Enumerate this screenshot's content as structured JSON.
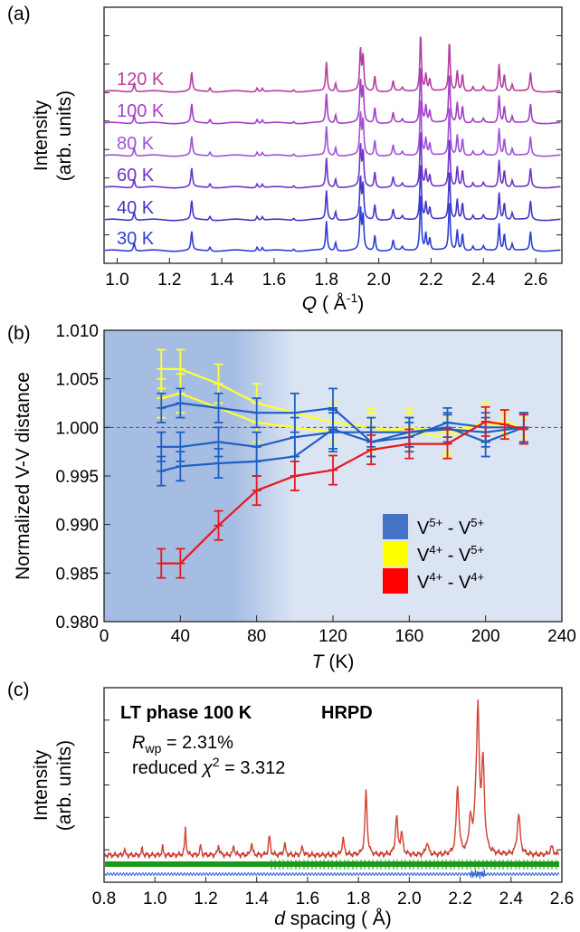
{
  "chart_data": [
    {
      "panel": "(a)",
      "type": "line",
      "xlabel_italic": "Q",
      "xlabel_rest": " ( Å",
      "xlabel_sup": "-1",
      "xlabel_close": ")",
      "ylabel_line1": "Intensity",
      "ylabel_line2": "(arb. units)",
      "xlim": [
        0.95,
        2.7
      ],
      "xticks": [
        1.0,
        1.2,
        1.4,
        1.6,
        1.8,
        2.0,
        2.2,
        2.4,
        2.6
      ],
      "xtick_labels": [
        "1.0",
        "1.2",
        "1.4",
        "1.6",
        "1.8",
        "2.0",
        "2.2",
        "2.4",
        "2.6"
      ],
      "peaks": [
        {
          "q": 1.065,
          "h": 0.25
        },
        {
          "q": 1.285,
          "h": 0.55
        },
        {
          "q": 1.355,
          "h": 0.12
        },
        {
          "q": 1.535,
          "h": 0.12
        },
        {
          "q": 1.555,
          "h": 0.1
        },
        {
          "q": 1.675,
          "h": 0.06
        },
        {
          "q": 1.8,
          "h": 0.85
        },
        {
          "q": 1.835,
          "h": 0.25
        },
        {
          "q": 1.93,
          "h": 1.2
        },
        {
          "q": 1.94,
          "h": 1.0
        },
        {
          "q": 1.985,
          "h": 0.45
        },
        {
          "q": 2.055,
          "h": 0.3
        },
        {
          "q": 2.09,
          "h": 0.1
        },
        {
          "q": 2.16,
          "h": 1.7
        },
        {
          "q": 2.18,
          "h": 0.5
        },
        {
          "q": 2.195,
          "h": 0.35
        },
        {
          "q": 2.27,
          "h": 1.45
        },
        {
          "q": 2.3,
          "h": 0.6
        },
        {
          "q": 2.32,
          "h": 0.5
        },
        {
          "q": 2.36,
          "h": 0.12
        },
        {
          "q": 2.4,
          "h": 0.12
        },
        {
          "q": 2.46,
          "h": 0.8
        },
        {
          "q": 2.48,
          "h": 0.5
        },
        {
          "q": 2.51,
          "h": 0.2
        },
        {
          "q": 2.58,
          "h": 0.55
        }
      ],
      "series": [
        {
          "name": "30 K",
          "color": "#2e3fd6"
        },
        {
          "name": "40 K",
          "color": "#4338c8"
        },
        {
          "name": "60 K",
          "color": "#6f35c8"
        },
        {
          "name": "80 K",
          "color": "#a052d8"
        },
        {
          "name": "100 K",
          "color": "#a43fc6"
        },
        {
          "name": "120 K",
          "color": "#b53fa0"
        }
      ]
    },
    {
      "panel": "(b)",
      "type": "line",
      "xlabel_italic": "T",
      "xlabel_rest": " (K)",
      "ylabel": "Normalized V-V distance",
      "xlim": [
        0,
        240
      ],
      "ylim": [
        0.98,
        1.01
      ],
      "xticks": [
        0,
        40,
        80,
        120,
        160,
        200,
        240
      ],
      "xtick_labels": [
        "0",
        "40",
        "80",
        "120",
        "160",
        "200",
        "240"
      ],
      "yticks": [
        0.98,
        0.985,
        0.99,
        0.995,
        1.0,
        1.005,
        1.01
      ],
      "ytick_labels": [
        "0.980",
        "0.985",
        "0.990",
        "0.995",
        "1.000",
        "1.005",
        "1.010"
      ],
      "reference_line": 1.0,
      "shaded_region_x": [
        0,
        100
      ],
      "legend_position": "bottom-right",
      "legend": [
        {
          "label": "V",
          "sup1": "5+",
          "mid": " - V",
          "sup2": "5+",
          "color": "#4472c4"
        },
        {
          "label": "V",
          "sup1": "4+",
          "mid": " - V",
          "sup2": "5+",
          "color": "#ffff00"
        },
        {
          "label": "V",
          "sup1": "4+",
          "mid": " - V",
          "sup2": "4+",
          "color": "#ff0000"
        }
      ],
      "series": [
        {
          "group": "V5+-V5+",
          "color": "#1f5fc4",
          "x": [
            30,
            40,
            60,
            80,
            100,
            120,
            140,
            160,
            180,
            200,
            220
          ],
          "y": [
            1.002,
            1.0025,
            1.002,
            1.0015,
            1.0015,
            1.002,
            0.9985,
            0.999,
            1.0005,
            1.0,
            1.0
          ],
          "err": [
            0.0015,
            0.0015,
            0.0015,
            0.0015,
            0.002,
            0.002,
            0.0015,
            0.0015,
            0.0015,
            0.0015,
            0.0015
          ]
        },
        {
          "group": "V5+-V5+",
          "color": "#1f5fc4",
          "x": [
            30,
            40,
            60,
            80,
            100,
            120,
            140,
            160,
            180,
            200,
            220
          ],
          "y": [
            0.998,
            0.998,
            0.9985,
            0.998,
            0.999,
            0.9995,
            0.9995,
            0.9995,
            1.0,
            0.9985,
            1.0
          ],
          "err": [
            0.0015,
            0.0015,
            0.0015,
            0.0015,
            0.002,
            0.002,
            0.0015,
            0.0015,
            0.0015,
            0.0015,
            0.0015
          ]
        },
        {
          "group": "V5+-V5+",
          "color": "#1f5fc4",
          "x": [
            30,
            40,
            60,
            80,
            100,
            120,
            140,
            160,
            180,
            200,
            220
          ],
          "y": [
            0.9955,
            0.996,
            0.9963,
            0.9965,
            0.997,
            0.9998,
            0.9985,
            0.9995,
            0.9998,
            0.9995,
            1.0
          ],
          "err": [
            0.0015,
            0.0015,
            0.0015,
            0.0015,
            0.002,
            0.002,
            0.0015,
            0.0015,
            0.0015,
            0.0015,
            0.0015
          ]
        },
        {
          "group": "V4+-V5+",
          "color": "#ffff33",
          "x": [
            30,
            40,
            60,
            80,
            120,
            140,
            160,
            180,
            200,
            210,
            220
          ],
          "y": [
            1.006,
            1.006,
            1.0045,
            1.0025,
            1.0005,
            1.0,
            0.9995,
            0.999,
            1.0005,
            1.0005,
            1.0
          ],
          "err": [
            0.002,
            0.002,
            0.002,
            0.002,
            0.002,
            0.002,
            0.002,
            0.002,
            0.002,
            0.001,
            0.001
          ]
        },
        {
          "group": "V4+-V5+",
          "color": "#ffff33",
          "x": [
            30,
            40,
            80,
            120,
            140,
            160,
            180,
            200,
            210,
            220
          ],
          "y": [
            1.003,
            1.0035,
            1.0005,
            0.9995,
            0.9995,
            1.0,
            0.9995,
            1.0005,
            1.0,
            1.0
          ],
          "err": [
            0.002,
            0.002,
            0.002,
            0.002,
            0.002,
            0.002,
            0.002,
            0.002,
            0.001,
            0.001
          ]
        },
        {
          "group": "V4+-V4+",
          "color": "#e8181e",
          "x": [
            30,
            40,
            60,
            80,
            100,
            120,
            140,
            160,
            180,
            200,
            210,
            220
          ],
          "y": [
            0.986,
            0.986,
            0.9899,
            0.9935,
            0.995,
            0.9956,
            0.9977,
            0.9983,
            0.9983,
            1.0006,
            1.0003,
            0.9998
          ],
          "err": [
            0.0015,
            0.0015,
            0.0015,
            0.0015,
            0.0015,
            0.0015,
            0.0015,
            0.0015,
            0.0015,
            0.0015,
            0.0015,
            0.0015
          ]
        }
      ]
    },
    {
      "panel": "(c)",
      "type": "line",
      "title_left": "LT phase 100 K",
      "title_right": "HRPD",
      "rwp_symbol": "R",
      "rwp_sub": "wp",
      "rwp_value": " = 2.31%",
      "chi_prefix": "reduced ",
      "chi_symbol": "χ",
      "chi_sup": "2",
      "chi_value": " = 3.312",
      "xlabel_italic": "d",
      "xlabel_rest": " spacing ( Å)",
      "ylabel_line1": "Intensity",
      "ylabel_line2": "(arb. units)",
      "xlim": [
        0.8,
        2.6
      ],
      "xticks": [
        0.8,
        1.0,
        1.2,
        1.4,
        1.6,
        1.8,
        2.0,
        2.2,
        2.4,
        2.6
      ],
      "xtick_labels": [
        "0.8",
        "1.0",
        "1.2",
        "1.4",
        "1.6",
        "1.8",
        "2.0",
        "2.2",
        "2.4",
        "2.6"
      ],
      "observed_color": "#c0392b",
      "calc_color": "#e74c3c",
      "tick_marks_color": "#1a9a1a",
      "difference_color": "#2c5fd6",
      "peaks": [
        {
          "d": 0.88,
          "h": 0.05
        },
        {
          "d": 0.95,
          "h": 0.05
        },
        {
          "d": 1.03,
          "h": 0.06
        },
        {
          "d": 1.12,
          "h": 0.2
        },
        {
          "d": 1.18,
          "h": 0.07
        },
        {
          "d": 1.25,
          "h": 0.08
        },
        {
          "d": 1.31,
          "h": 0.07
        },
        {
          "d": 1.38,
          "h": 0.09
        },
        {
          "d": 1.45,
          "h": 0.14
        },
        {
          "d": 1.51,
          "h": 0.08
        },
        {
          "d": 1.58,
          "h": 0.06
        },
        {
          "d": 1.74,
          "h": 0.12
        },
        {
          "d": 1.83,
          "h": 0.47
        },
        {
          "d": 1.95,
          "h": 0.28
        },
        {
          "d": 1.97,
          "h": 0.15
        },
        {
          "d": 2.07,
          "h": 0.09
        },
        {
          "d": 2.19,
          "h": 0.5
        },
        {
          "d": 2.24,
          "h": 0.25
        },
        {
          "d": 2.26,
          "h": 0.2
        },
        {
          "d": 2.27,
          "h": 1.0
        },
        {
          "d": 2.29,
          "h": 0.65
        },
        {
          "d": 2.43,
          "h": 0.3
        },
        {
          "d": 2.56,
          "h": 0.06
        }
      ]
    }
  ]
}
